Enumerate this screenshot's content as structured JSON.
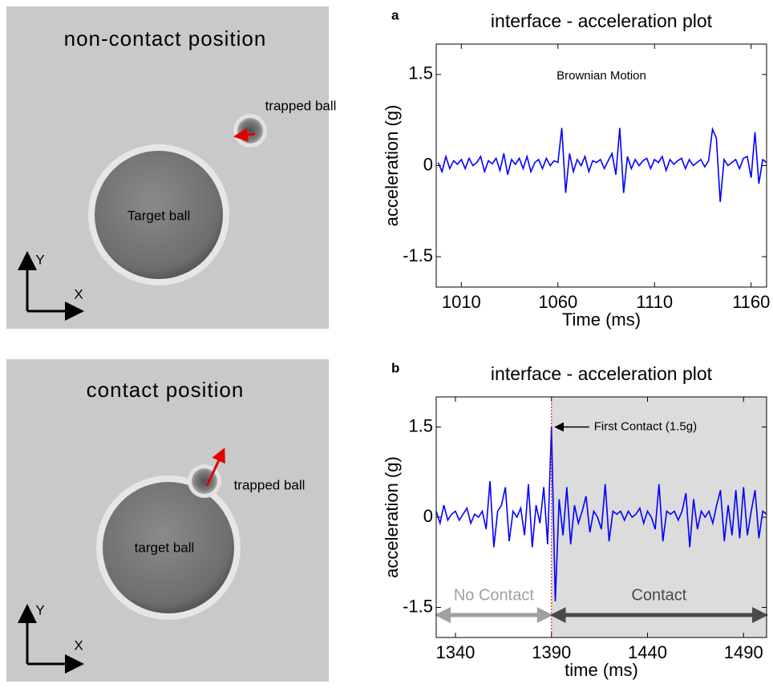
{
  "images": [
    {
      "title": "non-contact position",
      "trapped": "trapped ball",
      "target": "Target ball",
      "axis_y": "Y",
      "axis_x": "X"
    },
    {
      "title": "contact position",
      "trapped": "trapped ball",
      "target": "target ball",
      "axis_y": "Y",
      "axis_x": "X"
    }
  ],
  "chart_data": [
    {
      "type": "line",
      "panel": "a",
      "title": "interface - acceleration plot",
      "xlabel": "Time (ms)",
      "ylabel": "acceleration (g)",
      "annotation": "Brownian Motion",
      "xlim": [
        997,
        1168
      ],
      "xticks": [
        1010,
        1060,
        1110,
        1160
      ],
      "ylim": [
        -2,
        2
      ],
      "yticks": [
        -1.5,
        0,
        1.5
      ],
      "x": [
        998,
        1000,
        1002,
        1004,
        1006,
        1008,
        1010,
        1012,
        1014,
        1016,
        1018,
        1020,
        1022,
        1024,
        1026,
        1028,
        1030,
        1032,
        1034,
        1036,
        1038,
        1040,
        1042,
        1044,
        1046,
        1048,
        1050,
        1052,
        1054,
        1056,
        1058,
        1060,
        1062,
        1064,
        1066,
        1068,
        1070,
        1072,
        1074,
        1076,
        1078,
        1080,
        1082,
        1084,
        1086,
        1088,
        1090,
        1092,
        1094,
        1096,
        1098,
        1100,
        1102,
        1104,
        1106,
        1108,
        1110,
        1112,
        1114,
        1116,
        1118,
        1120,
        1122,
        1124,
        1126,
        1128,
        1130,
        1132,
        1134,
        1136,
        1138,
        1140,
        1142,
        1144,
        1146,
        1148,
        1150,
        1152,
        1154,
        1156,
        1158,
        1160,
        1162,
        1164,
        1166,
        1168
      ],
      "series": [
        {
          "color": "#0000ff",
          "values": [
            0.05,
            -0.1,
            0.15,
            -0.05,
            0.08,
            0.02,
            0.1,
            -0.05,
            0.12,
            0.0,
            0.05,
            0.15,
            -0.1,
            0.08,
            0.03,
            0.12,
            -0.08,
            0.2,
            -0.15,
            0.1,
            0.02,
            0.12,
            -0.05,
            0.15,
            -0.1,
            0.05,
            0.1,
            -0.05,
            0.12,
            0.0,
            0.08,
            0.05,
            0.62,
            -0.45,
            0.2,
            -0.1,
            0.1,
            0.0,
            0.15,
            -0.1,
            0.08,
            0.05,
            0.1,
            -0.05,
            0.08,
            0.2,
            -0.15,
            0.62,
            -0.45,
            0.15,
            -0.05,
            0.1,
            0.0,
            0.08,
            0.12,
            -0.05,
            0.1,
            0.05,
            0.15,
            -0.08,
            0.1,
            0.02,
            0.08,
            0.12,
            -0.05,
            0.1,
            0.0,
            0.05,
            0.1,
            -0.02,
            0.08,
            0.6,
            0.45,
            -0.6,
            0.1,
            0.0,
            0.05,
            0.1,
            -0.05,
            0.12,
            0.15,
            -0.2,
            0.55,
            -0.3,
            0.1,
            0.05
          ]
        }
      ]
    },
    {
      "type": "line",
      "panel": "b",
      "title": "interface - acceleration plot",
      "xlabel": "time (ms)",
      "ylabel": "acceleration (g)",
      "annotation": "First Contact (1.5g)",
      "region_labels": [
        "No Contact",
        "Contact"
      ],
      "contact_start": 1390,
      "xlim": [
        1330,
        1502
      ],
      "xticks": [
        1340,
        1390,
        1440,
        1490
      ],
      "ylim": [
        -2,
        2
      ],
      "yticks": [
        -1.5,
        0,
        1.5
      ],
      "x": [
        1330,
        1332,
        1334,
        1336,
        1338,
        1340,
        1342,
        1344,
        1346,
        1348,
        1350,
        1352,
        1354,
        1356,
        1358,
        1360,
        1362,
        1364,
        1366,
        1368,
        1370,
        1372,
        1374,
        1376,
        1378,
        1380,
        1382,
        1384,
        1386,
        1388,
        1390,
        1392,
        1394,
        1396,
        1398,
        1400,
        1402,
        1404,
        1406,
        1408,
        1410,
        1412,
        1414,
        1416,
        1418,
        1420,
        1422,
        1424,
        1426,
        1428,
        1430,
        1432,
        1434,
        1436,
        1438,
        1440,
        1442,
        1444,
        1446,
        1448,
        1450,
        1452,
        1454,
        1456,
        1458,
        1460,
        1462,
        1464,
        1466,
        1468,
        1470,
        1472,
        1474,
        1476,
        1478,
        1480,
        1482,
        1484,
        1486,
        1488,
        1490,
        1492,
        1494,
        1496,
        1498,
        1500,
        1502
      ],
      "series": [
        {
          "color": "#0000ff",
          "values": [
            0.1,
            -0.1,
            0.2,
            -0.05,
            0.05,
            0.1,
            -0.05,
            0.05,
            0.15,
            -0.1,
            0.05,
            0.0,
            0.1,
            -0.2,
            0.6,
            -0.5,
            0.1,
            0.2,
            0.5,
            -0.4,
            0.1,
            0.0,
            0.15,
            -0.3,
            0.55,
            -0.5,
            0.2,
            -0.1,
            0.5,
            -0.45,
            1.5,
            -1.4,
            0.3,
            -0.3,
            0.5,
            -0.45,
            0.2,
            -0.1,
            0.1,
            0.35,
            -0.25,
            0.1,
            0.0,
            -0.2,
            0.55,
            -0.4,
            0.1,
            0.05,
            0.1,
            -0.05,
            0.1,
            0.0,
            0.05,
            0.15,
            -0.1,
            0.1,
            0.0,
            -0.2,
            0.55,
            -0.4,
            0.1,
            0.05,
            0.1,
            -0.05,
            0.1,
            0.4,
            -0.5,
            0.3,
            -0.2,
            0.1,
            0.0,
            0.1,
            -0.1,
            0.2,
            0.45,
            -0.4,
            0.2,
            -0.3,
            0.45,
            -0.35,
            0.5,
            -0.3,
            0.1,
            0.45,
            -0.35,
            0.1,
            0.05
          ]
        }
      ]
    }
  ]
}
